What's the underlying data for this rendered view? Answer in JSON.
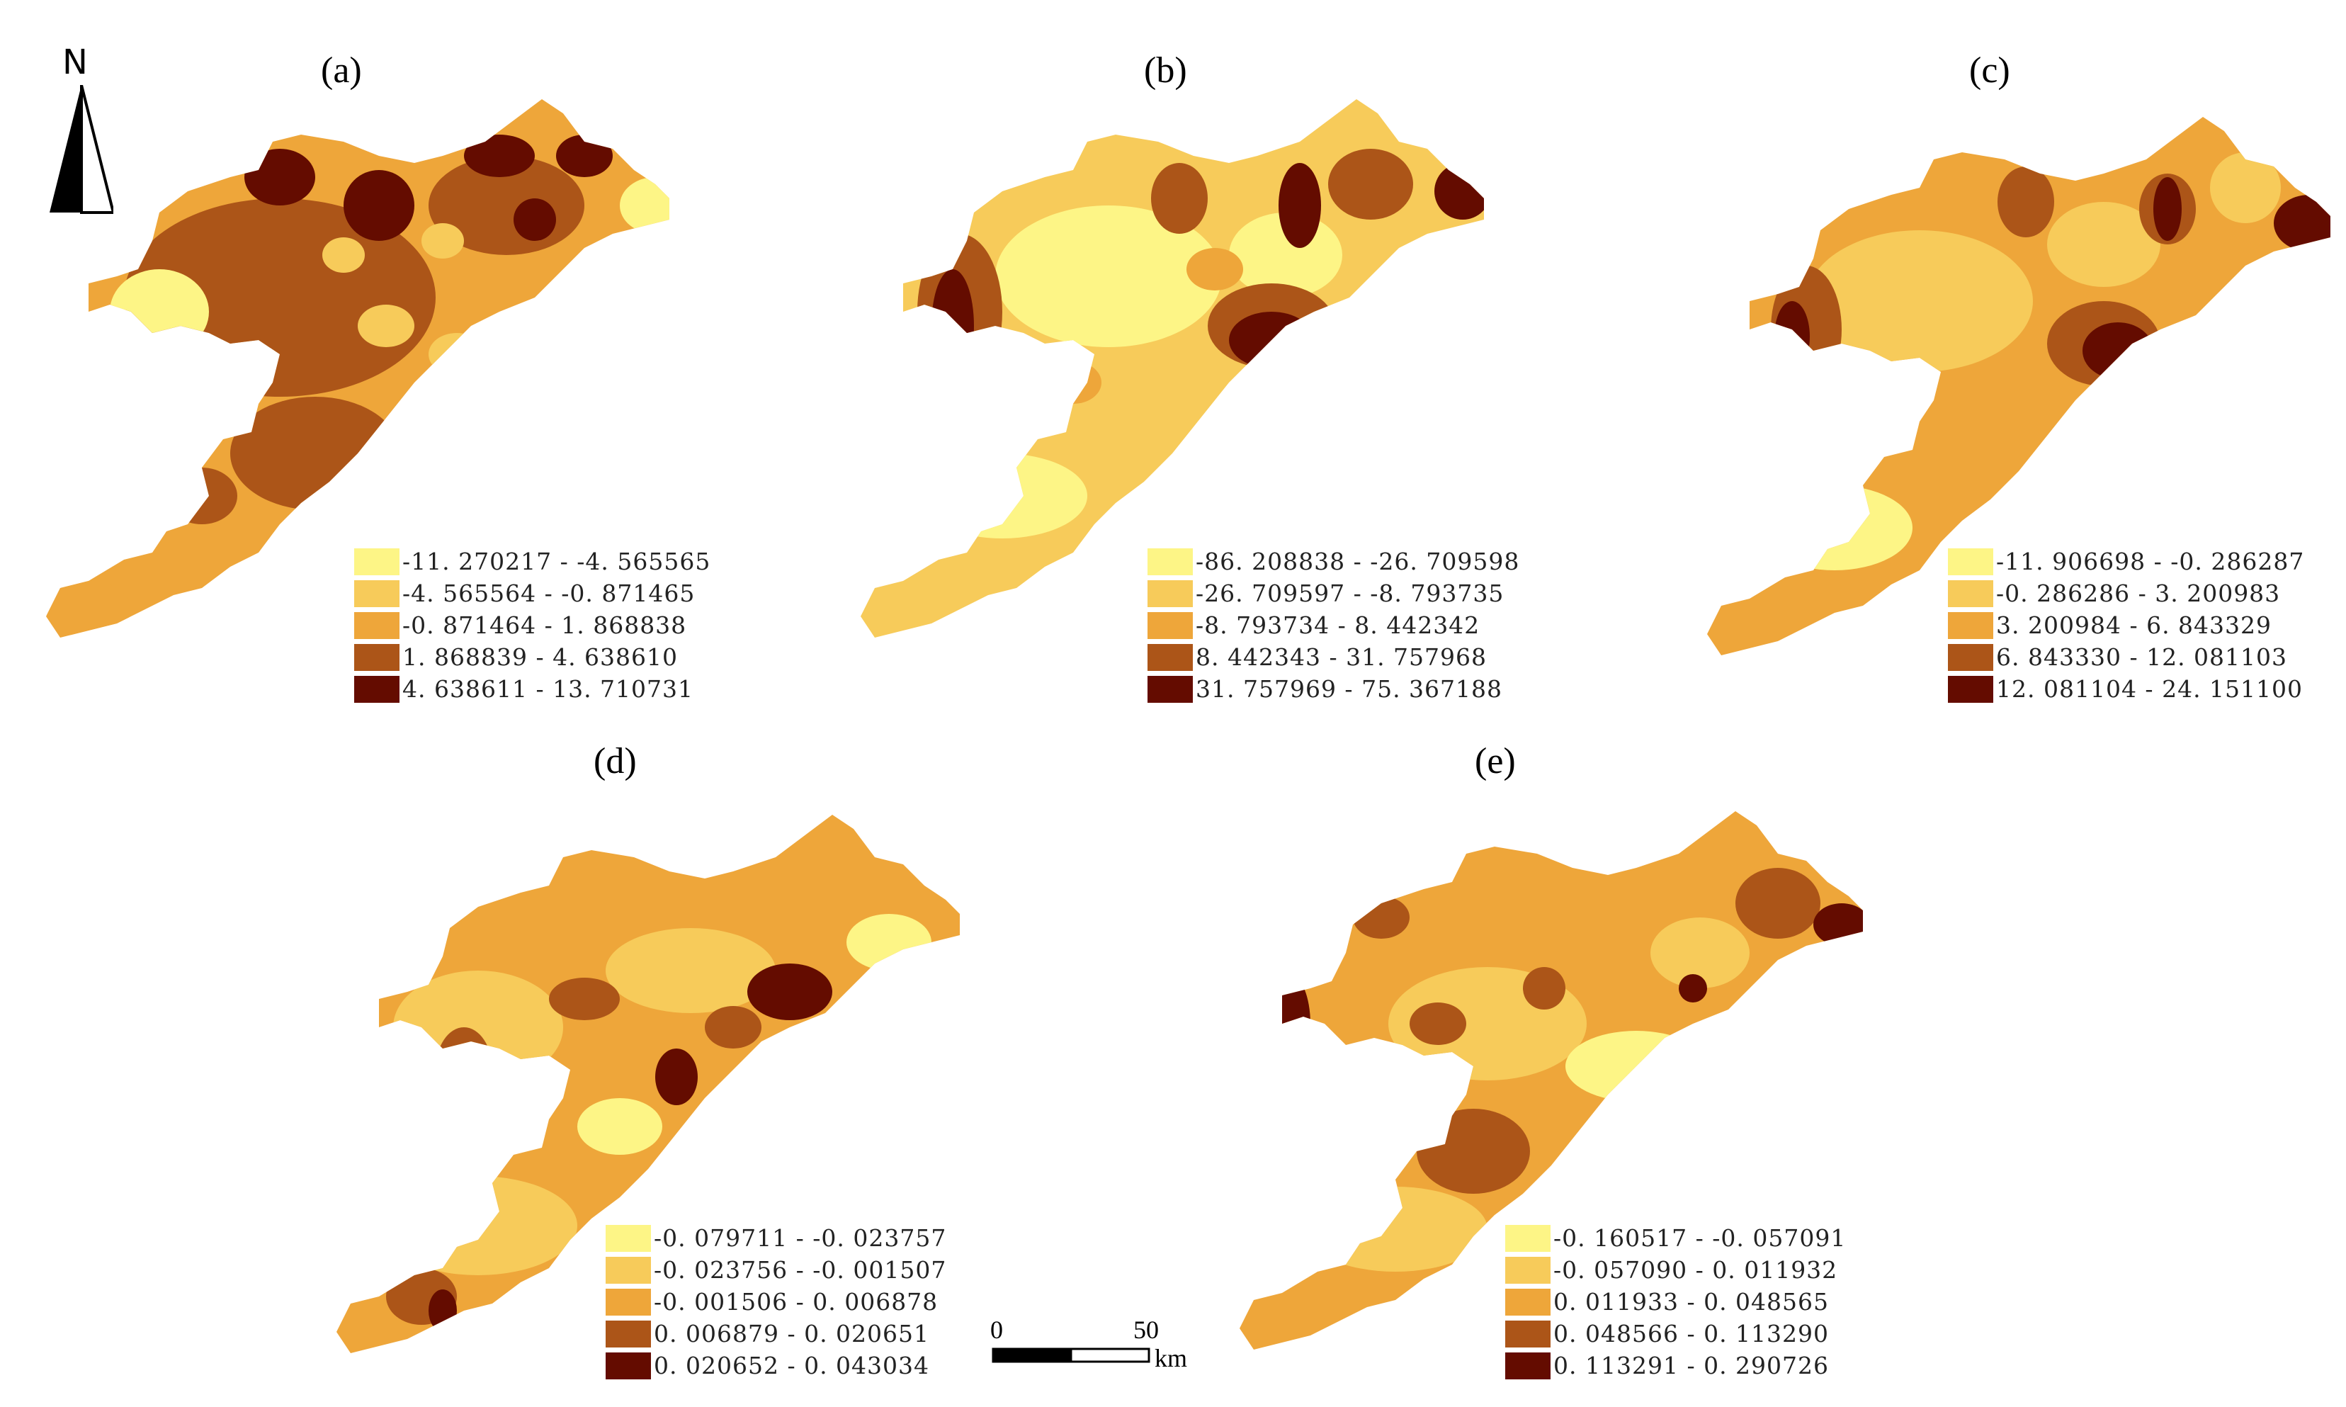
{
  "colors": {
    "c1": "#fdf586",
    "c2": "#f7cb5a",
    "c3": "#eea63a",
    "c4": "#ac5518",
    "c5": "#640c00"
  },
  "north_arrow": {
    "label": "N"
  },
  "scale_bar": {
    "zero": "0",
    "fifty": "50",
    "unit": "km"
  },
  "panels": [
    {
      "label": "(a)",
      "legend": [
        "-11. 270217 - -4. 565565",
        "-4. 565564 - -0. 871465",
        "-0. 871464 - 1. 868838",
        "1. 868839 - 4. 638610",
        "4. 638611 - 13. 710731"
      ]
    },
    {
      "label": "(b)",
      "legend": [
        "-86. 208838 - -26. 709598",
        "-26. 709597 - -8. 793735",
        "-8. 793734 - 8. 442342",
        "8. 442343 - 31. 757968",
        "31. 757969 - 75. 367188"
      ]
    },
    {
      "label": "(c)",
      "legend": [
        "-11. 906698 - -0. 286287",
        "-0. 286286 - 3. 200983",
        "3. 200984 - 6. 843329",
        "6. 843330 - 12. 081103",
        "12. 081104 - 24. 151100"
      ]
    },
    {
      "label": "(d)",
      "legend": [
        "-0. 079711 - -0. 023757",
        "-0. 023756 - -0. 001507",
        "-0. 001506 - 0. 006878",
        "0. 006879 - 0. 020651",
        "0. 020652 - 0. 043034"
      ]
    },
    {
      "label": "(e)",
      "legend": [
        "-0. 160517 - -0. 057091",
        "-0. 057090 - 0. 011932",
        "0. 011933 - 0. 048565",
        "0. 048566 - 0. 113290",
        "0. 113291 - 0. 290726"
      ]
    }
  ]
}
